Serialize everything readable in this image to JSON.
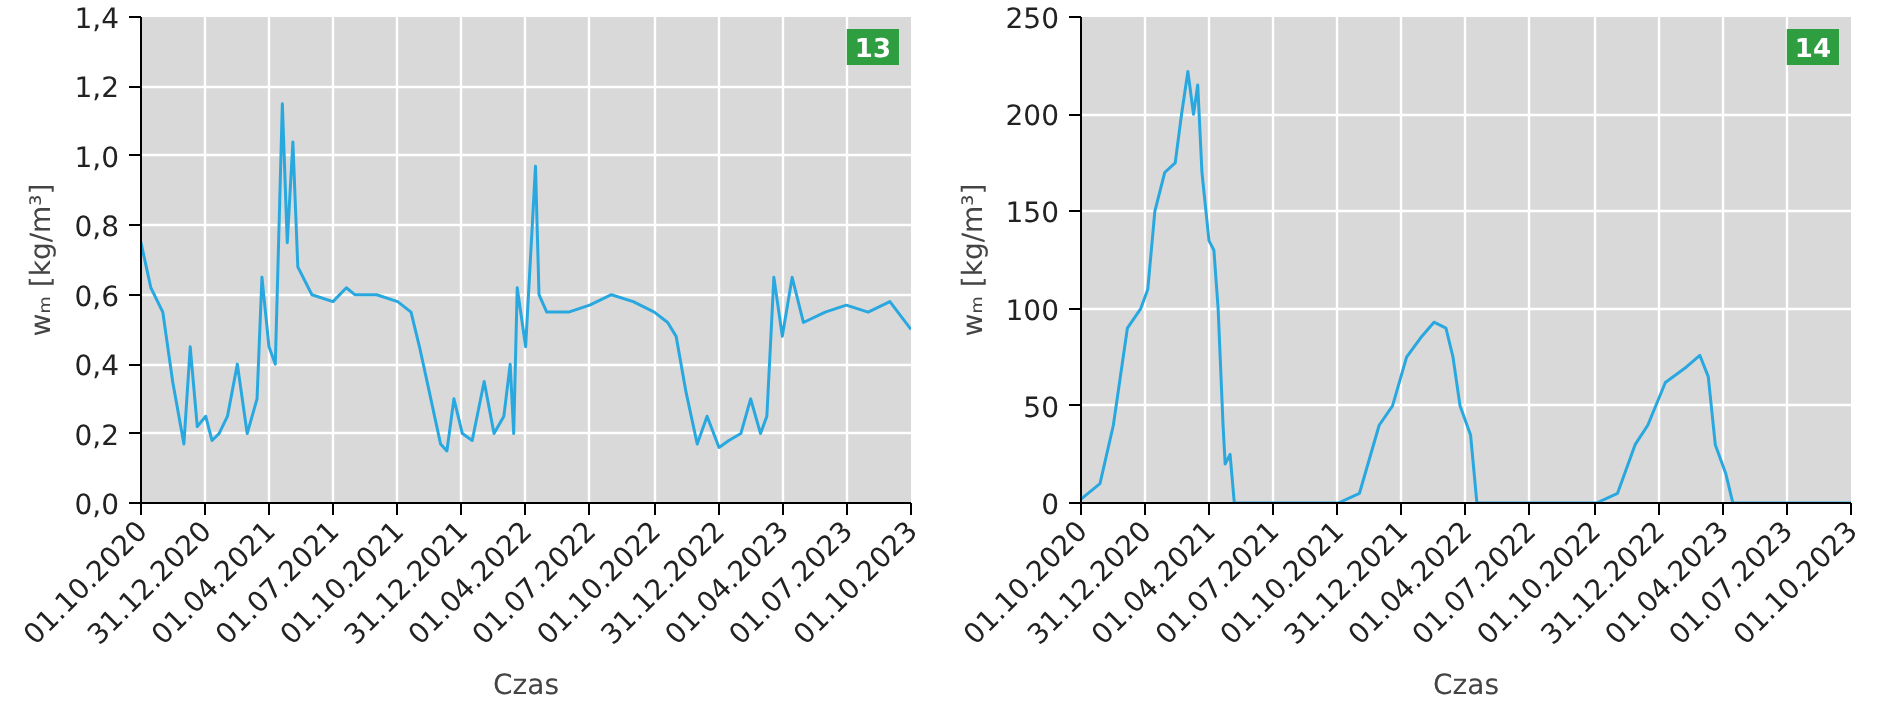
{
  "chart_data": [
    {
      "type": "line",
      "xlabel": "Czas",
      "ylabel": "wₘ [kg/m³]",
      "annotations": [
        "13"
      ],
      "grid": true,
      "marker": "none",
      "line_style": "solid",
      "xlim": [
        "2020-10-01",
        "2023-10-01"
      ],
      "xticks": [
        {
          "value": "2020-10-01",
          "label": "01.10.2020"
        },
        {
          "value": "2020-12-31",
          "label": "31.12.2020"
        },
        {
          "value": "2021-04-01",
          "label": "01.04.2021"
        },
        {
          "value": "2021-07-01",
          "label": "01.07.2021"
        },
        {
          "value": "2021-10-01",
          "label": "01.10.2021"
        },
        {
          "value": "2021-12-31",
          "label": "31.12.2021"
        },
        {
          "value": "2022-04-01",
          "label": "01.04.2022"
        },
        {
          "value": "2022-07-01",
          "label": "01.07.2022"
        },
        {
          "value": "2022-10-01",
          "label": "01.10.2022"
        },
        {
          "value": "2022-12-31",
          "label": "31.12.2022"
        },
        {
          "value": "2023-04-01",
          "label": "01.04.2023"
        },
        {
          "value": "2023-07-01",
          "label": "01.07.2023"
        },
        {
          "value": "2023-10-01",
          "label": "01.10.2023"
        }
      ],
      "ylim": [
        0,
        1.4
      ],
      "yticks": [
        {
          "value": 0,
          "label": "0,0"
        },
        {
          "value": 0.2,
          "label": "0,2"
        },
        {
          "value": 0.4,
          "label": "0,4"
        },
        {
          "value": 0.6,
          "label": "0,6"
        },
        {
          "value": 0.8,
          "label": "0,8"
        },
        {
          "value": 1.0,
          "label": "1,0"
        },
        {
          "value": 1.2,
          "label": "1,2"
        },
        {
          "value": 1.4,
          "label": "1,4"
        }
      ],
      "x": [
        "2020-10-01",
        "2020-10-15",
        "2020-11-01",
        "2020-11-15",
        "2020-12-01",
        "2020-12-10",
        "2020-12-20",
        "2021-01-01",
        "2021-01-10",
        "2021-01-20",
        "2021-02-01",
        "2021-02-15",
        "2021-03-01",
        "2021-03-15",
        "2021-03-22",
        "2021-04-01",
        "2021-04-10",
        "2021-04-20",
        "2021-04-27",
        "2021-05-05",
        "2021-05-12",
        "2021-06-01",
        "2021-07-01",
        "2021-07-20",
        "2021-08-01",
        "2021-09-01",
        "2021-10-01",
        "2021-10-20",
        "2021-11-01",
        "2021-11-15",
        "2021-12-01",
        "2021-12-10",
        "2021-12-20",
        "2022-01-01",
        "2022-01-15",
        "2022-02-01",
        "2022-02-15",
        "2022-03-01",
        "2022-03-10",
        "2022-03-15",
        "2022-03-20",
        "2022-04-01",
        "2022-04-15",
        "2022-04-20",
        "2022-05-01",
        "2022-06-01",
        "2022-07-01",
        "2022-08-01",
        "2022-09-01",
        "2022-10-01",
        "2022-10-20",
        "2022-11-01",
        "2022-11-15",
        "2022-12-01",
        "2022-12-15",
        "2023-01-01",
        "2023-01-15",
        "2023-02-01",
        "2023-02-15",
        "2023-03-01",
        "2023-03-10",
        "2023-03-20",
        "2023-04-01",
        "2023-04-15",
        "2023-05-01",
        "2023-06-01",
        "2023-07-01",
        "2023-08-01",
        "2023-09-01",
        "2023-10-01"
      ],
      "series": [
        {
          "color": "#29a8e0",
          "values": [
            0.75,
            0.62,
            0.55,
            0.35,
            0.17,
            0.45,
            0.22,
            0.25,
            0.18,
            0.2,
            0.25,
            0.4,
            0.2,
            0.3,
            0.65,
            0.45,
            0.4,
            1.15,
            0.75,
            1.04,
            0.68,
            0.6,
            0.58,
            0.62,
            0.6,
            0.6,
            0.58,
            0.55,
            0.45,
            0.32,
            0.17,
            0.15,
            0.3,
            0.2,
            0.18,
            0.35,
            0.2,
            0.25,
            0.4,
            0.2,
            0.62,
            0.45,
            0.97,
            0.6,
            0.55,
            0.55,
            0.57,
            0.6,
            0.58,
            0.55,
            0.52,
            0.48,
            0.32,
            0.17,
            0.25,
            0.16,
            0.18,
            0.2,
            0.3,
            0.2,
            0.25,
            0.65,
            0.48,
            0.65,
            0.52,
            0.55,
            0.57,
            0.55,
            0.58,
            0.5
          ]
        }
      ]
    },
    {
      "type": "line",
      "xlabel": "Czas",
      "ylabel": "wₘ [kg/m³]",
      "annotations": [
        "14"
      ],
      "grid": true,
      "marker": "none",
      "line_style": "solid",
      "xlim": [
        "2020-10-01",
        "2023-10-01"
      ],
      "xticks": [
        {
          "value": "2020-10-01",
          "label": "01.10.2020"
        },
        {
          "value": "2020-12-31",
          "label": "31.12.2020"
        },
        {
          "value": "2021-04-01",
          "label": "01.04.2021"
        },
        {
          "value": "2021-07-01",
          "label": "01.07.2021"
        },
        {
          "value": "2021-10-01",
          "label": "01.10.2021"
        },
        {
          "value": "2021-12-31",
          "label": "31.12.2021"
        },
        {
          "value": "2022-04-01",
          "label": "01.04.2022"
        },
        {
          "value": "2022-07-01",
          "label": "01.07.2022"
        },
        {
          "value": "2022-10-01",
          "label": "01.10.2022"
        },
        {
          "value": "2022-12-31",
          "label": "31.12.2022"
        },
        {
          "value": "2023-04-01",
          "label": "01.04.2023"
        },
        {
          "value": "2023-07-01",
          "label": "01.07.2023"
        },
        {
          "value": "2023-10-01",
          "label": "01.10.2023"
        }
      ],
      "ylim": [
        0,
        250
      ],
      "yticks": [
        0,
        50,
        100,
        150,
        200,
        250
      ],
      "x": [
        "2020-10-01",
        "2020-10-28",
        "2020-11-16",
        "2020-12-06",
        "2020-12-25",
        "2021-01-04",
        "2021-01-14",
        "2021-01-28",
        "2021-02-12",
        "2021-02-21",
        "2021-03-02",
        "2021-03-10",
        "2021-03-16",
        "2021-03-22",
        "2021-04-01",
        "2021-04-08",
        "2021-04-14",
        "2021-04-21",
        "2021-04-24",
        "2021-05-01",
        "2021-05-07",
        "2021-10-02",
        "2021-11-01",
        "2021-11-29",
        "2021-12-18",
        "2022-01-07",
        "2022-01-27",
        "2022-02-15",
        "2022-03-04",
        "2022-03-14",
        "2022-03-24",
        "2022-04-08",
        "2022-04-17",
        "2022-10-04",
        "2022-11-03",
        "2022-11-28",
        "2022-12-16",
        "2023-01-10",
        "2023-02-09",
        "2023-02-28",
        "2023-03-12",
        "2023-03-22",
        "2023-04-06",
        "2023-04-16",
        "2023-10-01"
      ],
      "series": [
        {
          "color": "#29a8e0",
          "values": [
            2,
            10,
            40,
            90,
            100,
            110,
            150,
            170,
            175,
            200,
            222,
            200,
            215,
            170,
            135,
            130,
            100,
            40,
            20,
            25,
            0,
            0,
            5,
            40,
            50,
            75,
            85,
            93,
            90,
            75,
            50,
            35,
            0,
            0,
            5,
            30,
            40,
            62,
            70,
            76,
            65,
            30,
            15,
            0,
            0
          ]
        }
      ]
    }
  ]
}
